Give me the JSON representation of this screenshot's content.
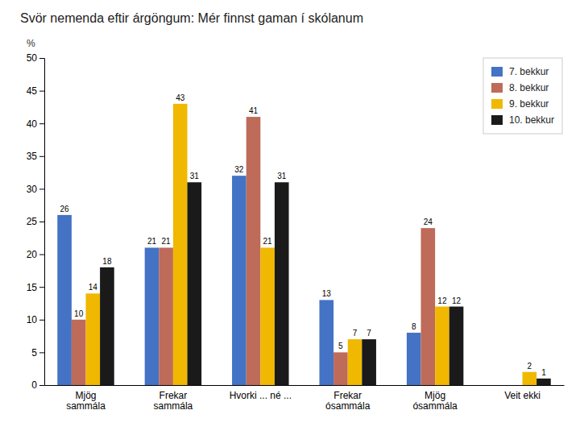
{
  "chart_data": {
    "type": "bar",
    "title": "Svör nemenda eftir árgöngum: Mér finnst gaman í skólanum",
    "y_label": "%",
    "categories": [
      "Mjög\nsammála",
      "Frekar\nsammála",
      "Hvorki ... né ...",
      "Frekar\nósammála",
      "Mjög\nósammála",
      "Veit ekki"
    ],
    "series": [
      {
        "name": "7. bekkur",
        "color": "#4472C4",
        "values": [
          26,
          21,
          32,
          13,
          8,
          0
        ]
      },
      {
        "name": "8. bekkur",
        "color": "#BE6B5A",
        "values": [
          10,
          21,
          41,
          5,
          24,
          0
        ]
      },
      {
        "name": "9. bekkur",
        "color": "#F0B800",
        "values": [
          14,
          43,
          21,
          7,
          12,
          2
        ]
      },
      {
        "name": "10. bekkur",
        "color": "#1A1A1A",
        "values": [
          18,
          31,
          31,
          7,
          12,
          1
        ]
      }
    ],
    "ylim": [
      0,
      50
    ],
    "yticks": [
      0,
      5,
      10,
      15,
      20,
      25,
      30,
      35,
      40,
      45,
      50
    ],
    "grid": false,
    "legend": "upper right",
    "data_labels": true
  }
}
